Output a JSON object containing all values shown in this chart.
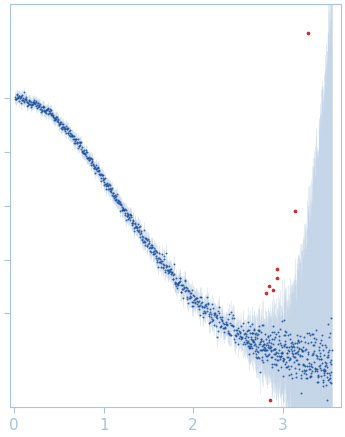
{
  "xlim": [
    -0.05,
    3.65
  ],
  "ylim": [
    -0.15,
    1.35
  ],
  "xticks": [
    0,
    1,
    2,
    3
  ],
  "background_color": "#ffffff",
  "spine_color": "#a8c4e0",
  "tick_color": "#a8c4e0",
  "point_color_blue": "#1a4f9c",
  "point_color_red": "#cc2222",
  "error_band_color": "#c8d8ee",
  "error_line_color": "#b8ccde",
  "n_points_dense": 600,
  "n_points_sparse": 400,
  "q_min": 0.01,
  "q_transition": 2.6,
  "q_max": 3.55,
  "figsize": [
    3.45,
    4.37
  ],
  "dpi": 100,
  "ytick_positions": [
    0.2,
    0.4,
    0.6,
    0.8,
    1.0
  ]
}
